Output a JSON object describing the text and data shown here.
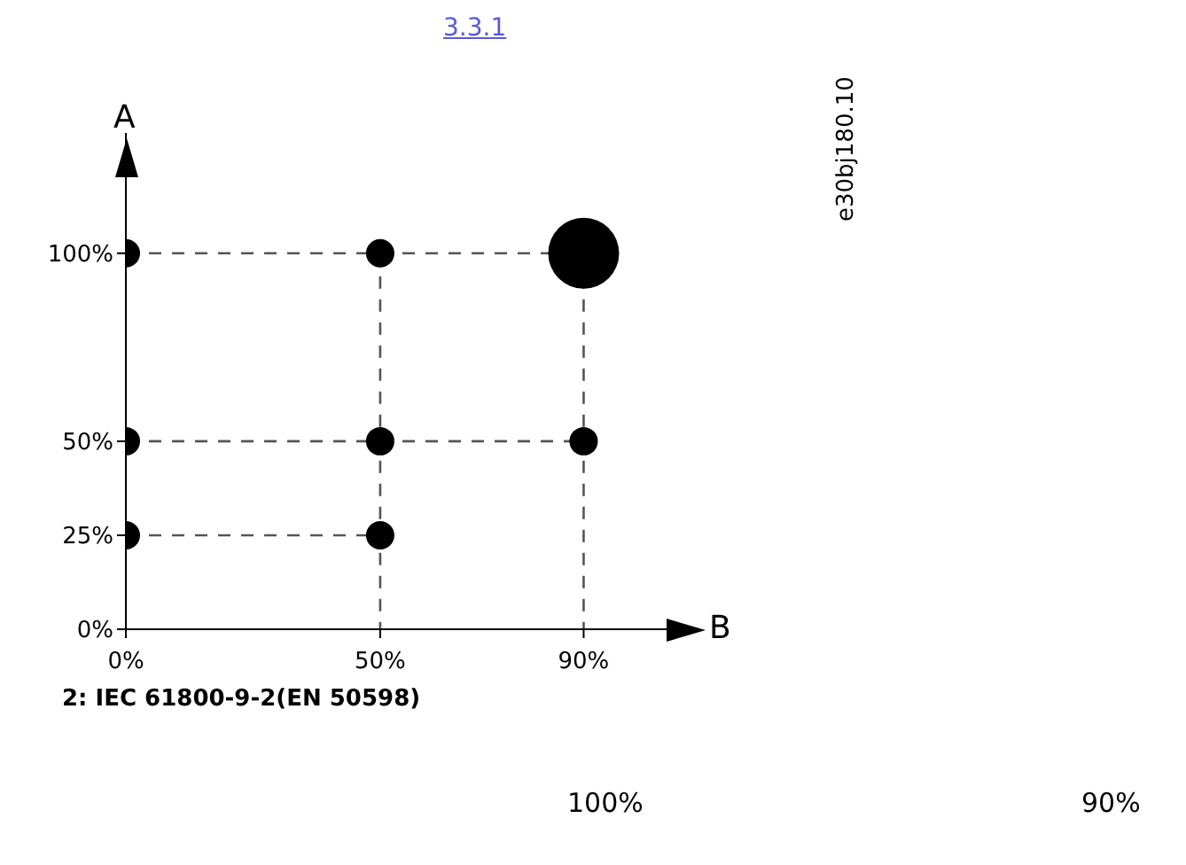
{
  "chart_data": {
    "type": "bubble",
    "xlabel": "B",
    "ylabel": "A",
    "annotations": [
      "3.3.1",
      "e30bj180.10",
      "2: IEC 61800-9-2(EN 50598)",
      "100%",
      "90%"
    ],
    "xlim": [
      0,
      107
    ],
    "ylim": [
      0,
      132
    ],
    "xticks": [
      {
        "value": 0,
        "label": "0%"
      },
      {
        "value": 50,
        "label": "50%"
      },
      {
        "value": 90,
        "label": "90%"
      }
    ],
    "yticks": [
      {
        "value": 0,
        "label": "0%"
      },
      {
        "value": 25,
        "label": "25%"
      },
      {
        "value": 50,
        "label": "50%"
      },
      {
        "value": 100,
        "label": "100%"
      }
    ],
    "grid": false,
    "legend": false,
    "marker": "circle",
    "series": [
      {
        "color": "#000000",
        "x": [
          0,
          50,
          90,
          0,
          50,
          90,
          0,
          50
        ],
        "values": [
          100,
          100,
          100,
          50,
          50,
          50,
          25,
          25
        ],
        "sizes": [
          0.16,
          0.16,
          1,
          0.16,
          0.16,
          0.16,
          0.16,
          0.16
        ]
      },
      {
        "type": "line",
        "color": "#555555",
        "line_style": "dashed",
        "marker": "none",
        "x": [
          0,
          90
        ],
        "values": [
          100,
          100
        ]
      },
      {
        "type": "line",
        "color": "#555555",
        "line_style": "dashed",
        "marker": "none",
        "x": [
          0,
          90
        ],
        "values": [
          50,
          50
        ]
      },
      {
        "type": "line",
        "color": "#555555",
        "line_style": "dashed",
        "marker": "none",
        "x": [
          0,
          50
        ],
        "values": [
          25,
          25
        ]
      },
      {
        "type": "line",
        "color": "#555555",
        "line_style": "dashed",
        "marker": "none",
        "x": [
          50,
          50
        ],
        "values": [
          100,
          0
        ]
      },
      {
        "type": "line",
        "color": "#555555",
        "line_style": "dashed",
        "marker": "none",
        "x": [
          90,
          90
        ],
        "values": [
          100,
          0
        ]
      }
    ]
  }
}
